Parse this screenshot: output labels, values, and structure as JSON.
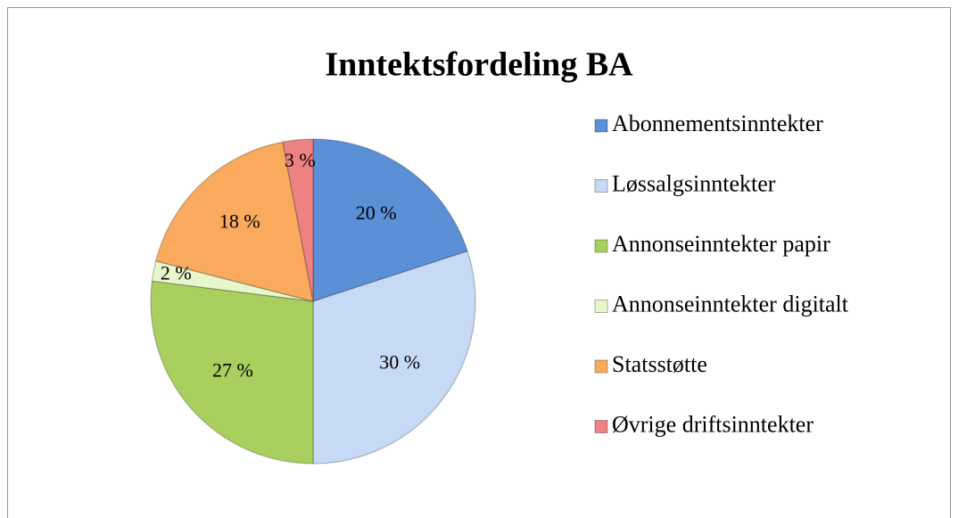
{
  "chart_data": {
    "type": "pie",
    "title": "Inntektsfordeling BA",
    "categories": [
      "Abonnementsinntekter",
      "Løssalgsinntekter",
      "Annonseinntekter papir",
      "Annonseinntekter digitalt",
      "Statsstøtte",
      "Øvrige driftsinntekter"
    ],
    "values": [
      20,
      30,
      27,
      2,
      18,
      3
    ],
    "value_labels": [
      "20 %",
      "30 %",
      "27 %",
      "2 %",
      "18 %",
      "3 %"
    ],
    "colors": [
      "#5b8fd6",
      "#c6d9f5",
      "#a9cf5e",
      "#e8f6cc",
      "#f9aa5c",
      "#ee8282"
    ],
    "legend": "right"
  }
}
